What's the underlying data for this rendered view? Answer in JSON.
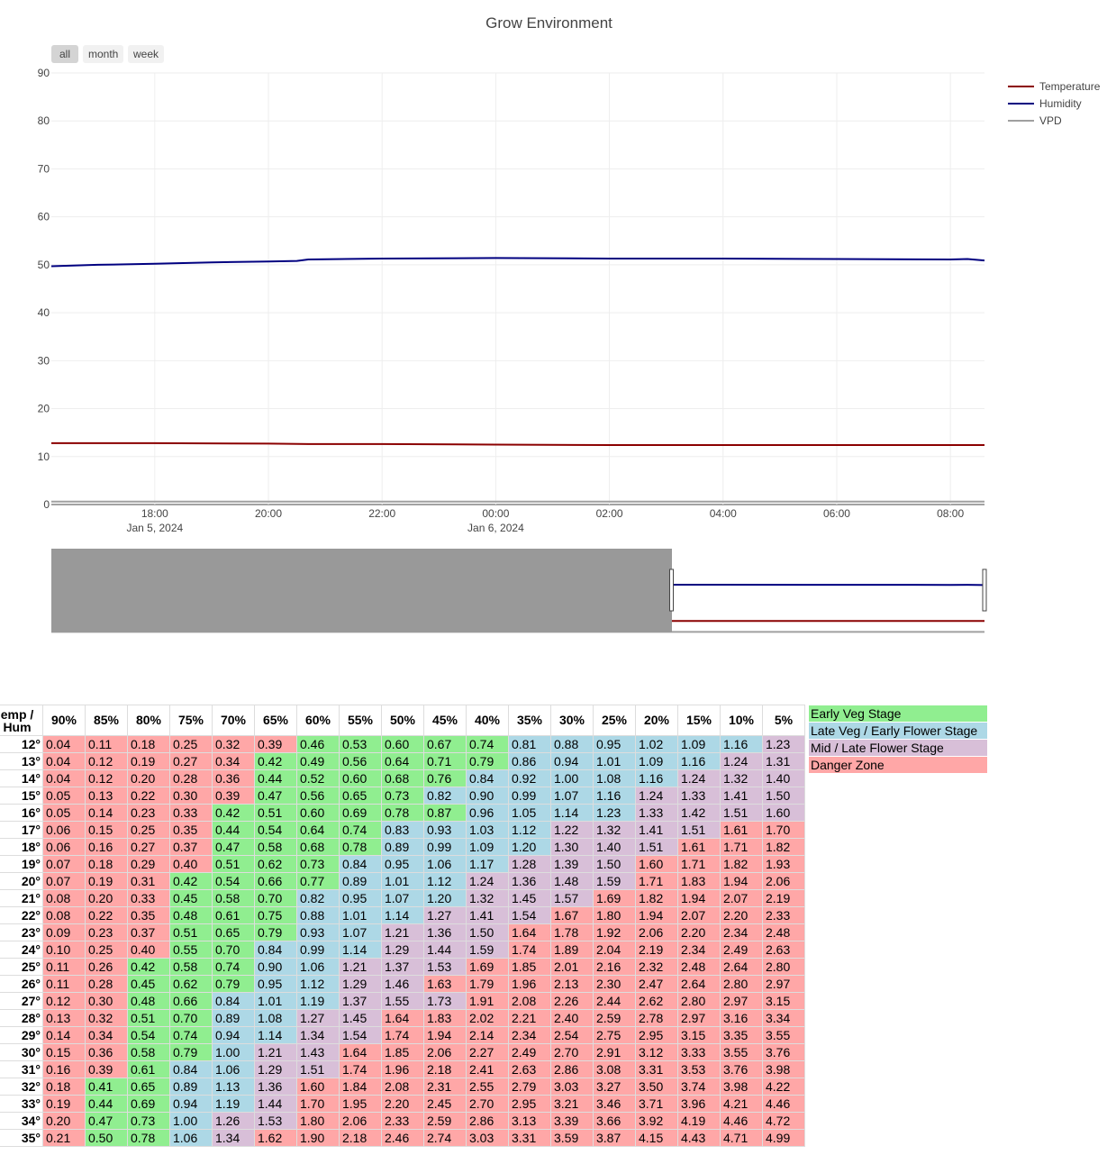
{
  "chart_data": {
    "type": "line",
    "title": "Grow Environment",
    "range_buttons": [
      "all",
      "month",
      "week"
    ],
    "active_range": "all",
    "y_ticks": [
      0,
      10,
      20,
      30,
      40,
      50,
      60,
      70,
      80,
      90
    ],
    "ylim": [
      0,
      90
    ],
    "x_ticks": [
      {
        "label": "18:00",
        "sub": "Jan 5, 2024",
        "t": 18
      },
      {
        "label": "20:00",
        "sub": "",
        "t": 20
      },
      {
        "label": "22:00",
        "sub": "",
        "t": 22
      },
      {
        "label": "00:00",
        "sub": "Jan 6, 2024",
        "t": 24
      },
      {
        "label": "02:00",
        "sub": "",
        "t": 26
      },
      {
        "label": "04:00",
        "sub": "",
        "t": 28
      },
      {
        "label": "06:00",
        "sub": "",
        "t": 30
      },
      {
        "label": "08:00",
        "sub": "",
        "t": 32
      }
    ],
    "x_range_hours": [
      16.18,
      32.6
    ],
    "grid": true,
    "legend_position": "top-right",
    "series": [
      {
        "name": "Temperature",
        "color": "#8b0000",
        "x": [
          16.18,
          18,
          20,
          20.7,
          22,
          24,
          26,
          28,
          30,
          32,
          32.6
        ],
        "y": [
          12.8,
          12.8,
          12.7,
          12.6,
          12.6,
          12.5,
          12.4,
          12.4,
          12.4,
          12.4,
          12.4
        ]
      },
      {
        "name": "Humidity",
        "color": "#000080",
        "x": [
          16.18,
          17,
          18,
          19,
          20,
          20.5,
          20.7,
          22,
          24,
          26,
          28,
          30,
          32,
          32.3,
          32.6
        ],
        "y": [
          49.7,
          50.0,
          50.2,
          50.5,
          50.7,
          50.8,
          51.1,
          51.3,
          51.4,
          51.3,
          51.3,
          51.2,
          51.1,
          51.2,
          50.9
        ]
      },
      {
        "name": "VPD",
        "color": "#a0a0a0",
        "x": [
          16.18,
          20,
          24,
          28,
          32,
          32.6
        ],
        "y": [
          0.6,
          0.6,
          0.6,
          0.6,
          0.6,
          0.6
        ]
      }
    ],
    "rangeslider_selection_start": 27.1
  },
  "vpd_table": {
    "corner": [
      "emp /",
      "Hum"
    ],
    "columns": [
      "90%",
      "85%",
      "80%",
      "75%",
      "70%",
      "65%",
      "60%",
      "55%",
      "50%",
      "45%",
      "40%",
      "35%",
      "30%",
      "25%",
      "20%",
      "15%",
      "10%",
      "5%"
    ],
    "rows": [
      {
        "temp": "12°",
        "values": [
          "0.04",
          "0.11",
          "0.18",
          "0.25",
          "0.32",
          "0.39",
          "0.46",
          "0.53",
          "0.60",
          "0.67",
          "0.74",
          "0.81",
          "0.88",
          "0.95",
          "1.02",
          "1.09",
          "1.16",
          "1.23"
        ],
        "zones": "rrrrrrggggg bbbbbbp"
      },
      {
        "temp": "13°",
        "values": [
          "0.04",
          "0.12",
          "0.19",
          "0.27",
          "0.34",
          "0.42",
          "0.49",
          "0.56",
          "0.64",
          "0.71",
          "0.79",
          "0.86",
          "0.94",
          "1.01",
          "1.09",
          "1.16",
          "1.24",
          "1.31"
        ],
        "zones": "rrrrrgggggg bbbbbpp"
      },
      {
        "temp": "14°",
        "values": [
          "0.04",
          "0.12",
          "0.20",
          "0.28",
          "0.36",
          "0.44",
          "0.52",
          "0.60",
          "0.68",
          "0.76",
          "0.84",
          "0.92",
          "1.00",
          "1.08",
          "1.16",
          "1.24",
          "1.32",
          "1.40"
        ],
        "zones": "rrrrrgggggb bbbbppp"
      },
      {
        "temp": "15°",
        "values": [
          "0.05",
          "0.13",
          "0.22",
          "0.30",
          "0.39",
          "0.47",
          "0.56",
          "0.65",
          "0.73",
          "0.82",
          "0.90",
          "0.99",
          "1.07",
          "1.16",
          "1.24",
          "1.33",
          "1.41",
          "1.50"
        ],
        "zones": "rrrrrggggbb bbbpppp"
      },
      {
        "temp": "16°",
        "values": [
          "0.05",
          "0.14",
          "0.23",
          "0.33",
          "0.42",
          "0.51",
          "0.60",
          "0.69",
          "0.78",
          "0.87",
          "0.96",
          "1.05",
          "1.14",
          "1.23",
          "1.33",
          "1.42",
          "1.51",
          "1.60"
        ],
        "zones": "rrrrggggggb bbbpppp"
      },
      {
        "temp": "17°",
        "values": [
          "0.06",
          "0.15",
          "0.25",
          "0.35",
          "0.44",
          "0.54",
          "0.64",
          "0.74",
          "0.83",
          "0.93",
          "1.03",
          "1.12",
          "1.22",
          "1.32",
          "1.41",
          "1.51",
          "1.61",
          "1.70"
        ],
        "zones": "rrrrggggbbb bppppr r"
      },
      {
        "temp": "18°",
        "values": [
          "0.06",
          "0.16",
          "0.27",
          "0.37",
          "0.47",
          "0.58",
          "0.68",
          "0.78",
          "0.89",
          "0.99",
          "1.09",
          "1.20",
          "1.30",
          "1.40",
          "1.51",
          "1.61",
          "1.71",
          "1.82"
        ],
        "zones": "rrrrggggbbb bppprr r"
      },
      {
        "temp": "19°",
        "values": [
          "0.07",
          "0.18",
          "0.29",
          "0.40",
          "0.51",
          "0.62",
          "0.73",
          "0.84",
          "0.95",
          "1.06",
          "1.17",
          "1.28",
          "1.39",
          "1.50",
          "1.60",
          "1.71",
          "1.82",
          "1.93"
        ],
        "zones": "rrrrgggbbbb pppr rrr"
      },
      {
        "temp": "20°",
        "values": [
          "0.07",
          "0.19",
          "0.31",
          "0.42",
          "0.54",
          "0.66",
          "0.77",
          "0.89",
          "1.01",
          "1.12",
          "1.24",
          "1.36",
          "1.48",
          "1.59",
          "1.71",
          "1.83",
          "1.94",
          "2.06"
        ],
        "zones": "rrrggggbbbp ppprrrr"
      },
      {
        "temp": "21°",
        "values": [
          "0.08",
          "0.20",
          "0.33",
          "0.45",
          "0.58",
          "0.70",
          "0.82",
          "0.95",
          "1.07",
          "1.20",
          "1.32",
          "1.45",
          "1.57",
          "1.69",
          "1.82",
          "1.94",
          "2.07",
          "2.19"
        ],
        "zones": "rrrgggbbbbp pprrrrr"
      },
      {
        "temp": "22°",
        "values": [
          "0.08",
          "0.22",
          "0.35",
          "0.48",
          "0.61",
          "0.75",
          "0.88",
          "1.01",
          "1.14",
          "1.27",
          "1.41",
          "1.54",
          "1.67",
          "1.80",
          "1.94",
          "2.07",
          "2.20",
          "2.33"
        ],
        "zones": "rrrgggbbbpp prrrrrr"
      },
      {
        "temp": "23°",
        "values": [
          "0.09",
          "0.23",
          "0.37",
          "0.51",
          "0.65",
          "0.79",
          "0.93",
          "1.07",
          "1.21",
          "1.36",
          "1.50",
          "1.64",
          "1.78",
          "1.92",
          "2.06",
          "2.20",
          "2.34",
          "2.48"
        ],
        "zones": "rrrgggbbppp rrrrrrr"
      },
      {
        "temp": "24°",
        "values": [
          "0.10",
          "0.25",
          "0.40",
          "0.55",
          "0.70",
          "0.84",
          "0.99",
          "1.14",
          "1.29",
          "1.44",
          "1.59",
          "1.74",
          "1.89",
          "2.04",
          "2.19",
          "2.34",
          "2.49",
          "2.63"
        ],
        "zones": "rrrggbbbppp rrrrrrr"
      },
      {
        "temp": "25°",
        "values": [
          "0.11",
          "0.26",
          "0.42",
          "0.58",
          "0.74",
          "0.90",
          "1.06",
          "1.21",
          "1.37",
          "1.53",
          "1.69",
          "1.85",
          "2.01",
          "2.16",
          "2.32",
          "2.48",
          "2.64",
          "2.80"
        ],
        "zones": "rrgggbbpppr rrrrrrr"
      },
      {
        "temp": "26°",
        "values": [
          "0.11",
          "0.28",
          "0.45",
          "0.62",
          "0.79",
          "0.95",
          "1.12",
          "1.29",
          "1.46",
          "1.63",
          "1.79",
          "1.96",
          "2.13",
          "2.30",
          "2.47",
          "2.64",
          "2.80",
          "2.97"
        ],
        "zones": "rrgggbbpprr rrrrrrr"
      },
      {
        "temp": "27°",
        "values": [
          "0.12",
          "0.30",
          "0.48",
          "0.66",
          "0.84",
          "1.01",
          "1.19",
          "1.37",
          "1.55",
          "1.73",
          "1.91",
          "2.08",
          "2.26",
          "2.44",
          "2.62",
          "2.80",
          "2.97",
          "3.15"
        ],
        "zones": "rrggbbbpppr rrrrrrr"
      },
      {
        "temp": "28°",
        "values": [
          "0.13",
          "0.32",
          "0.51",
          "0.70",
          "0.89",
          "1.08",
          "1.27",
          "1.45",
          "1.64",
          "1.83",
          "2.02",
          "2.21",
          "2.40",
          "2.59",
          "2.78",
          "2.97",
          "3.16",
          "3.34"
        ],
        "zones": "rrggbbpprrr rrrrrrr"
      },
      {
        "temp": "29°",
        "values": [
          "0.14",
          "0.34",
          "0.54",
          "0.74",
          "0.94",
          "1.14",
          "1.34",
          "1.54",
          "1.74",
          "1.94",
          "2.14",
          "2.34",
          "2.54",
          "2.75",
          "2.95",
          "3.15",
          "3.35",
          "3.55"
        ],
        "zones": "rrggbbpprrr rrrrrrr"
      },
      {
        "temp": "30°",
        "values": [
          "0.15",
          "0.36",
          "0.58",
          "0.79",
          "1.00",
          "1.21",
          "1.43",
          "1.64",
          "1.85",
          "2.06",
          "2.27",
          "2.49",
          "2.70",
          "2.91",
          "3.12",
          "3.33",
          "3.55",
          "3.76"
        ],
        "zones": "rrggbpprrrr rrrrrrr"
      },
      {
        "temp": "31°",
        "values": [
          "0.16",
          "0.39",
          "0.61",
          "0.84",
          "1.06",
          "1.29",
          "1.51",
          "1.74",
          "1.96",
          "2.18",
          "2.41",
          "2.63",
          "2.86",
          "3.08",
          "3.31",
          "3.53",
          "3.76",
          "3.98"
        ],
        "zones": "rrgbbpprrrr rrrrrrr"
      },
      {
        "temp": "32°",
        "values": [
          "0.18",
          "0.41",
          "0.65",
          "0.89",
          "1.13",
          "1.36",
          "1.60",
          "1.84",
          "2.08",
          "2.31",
          "2.55",
          "2.79",
          "3.03",
          "3.27",
          "3.50",
          "3.74",
          "3.98",
          "4.22"
        ],
        "zones": "rggbbprrrrr rrrrrrr"
      },
      {
        "temp": "33°",
        "values": [
          "0.19",
          "0.44",
          "0.69",
          "0.94",
          "1.19",
          "1.44",
          "1.70",
          "1.95",
          "2.20",
          "2.45",
          "2.70",
          "2.95",
          "3.21",
          "3.46",
          "3.71",
          "3.96",
          "4.21",
          "4.46"
        ],
        "zones": "rggbbprrrrr rrrrrrr"
      },
      {
        "temp": "34°",
        "values": [
          "0.20",
          "0.47",
          "0.73",
          "1.00",
          "1.26",
          "1.53",
          "1.80",
          "2.06",
          "2.33",
          "2.59",
          "2.86",
          "3.13",
          "3.39",
          "3.66",
          "3.92",
          "4.19",
          "4.46",
          "4.72"
        ],
        "zones": "rggbpprrrrr rrrrrrr"
      },
      {
        "temp": "35°",
        "values": [
          "0.21",
          "0.50",
          "0.78",
          "1.06",
          "1.34",
          "1.62",
          "1.90",
          "2.18",
          "2.46",
          "2.74",
          "3.03",
          "3.31",
          "3.59",
          "3.87",
          "4.15",
          "4.43",
          "4.71",
          "4.99"
        ],
        "zones": "rggbprrrrrr rrrrrrr"
      }
    ]
  },
  "legend_table": [
    {
      "label": "Early Veg Stage",
      "color": "#90ee90"
    },
    {
      "label": "Late Veg / Early Flower Stage",
      "color": "#add8e6"
    },
    {
      "label": "Mid / Late Flower Stage",
      "color": "#d8bfd8"
    },
    {
      "label": "Danger Zone",
      "color": "#ffa7a7"
    }
  ]
}
